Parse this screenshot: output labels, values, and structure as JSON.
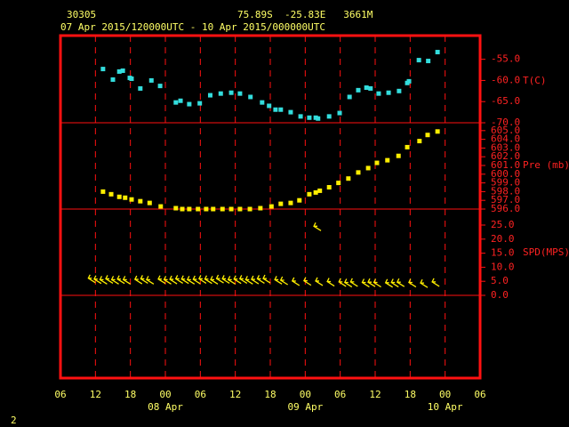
{
  "header": {
    "station": "30305",
    "location": "75.89S  -25.83E   3661M",
    "period": "07 Apr 2015/120000UTC - 10 Apr 2015/000000UTC",
    "page": "2"
  },
  "x_axis": {
    "xlim": [
      6,
      78
    ],
    "xticks": [
      {
        "value": 6,
        "label": "06"
      },
      {
        "value": 12,
        "label": "12"
      },
      {
        "value": 18,
        "label": "18"
      },
      {
        "value": 24,
        "label": "00"
      },
      {
        "value": 30,
        "label": "06"
      },
      {
        "value": 36,
        "label": "12"
      },
      {
        "value": 42,
        "label": "18"
      },
      {
        "value": 48,
        "label": "00"
      },
      {
        "value": 54,
        "label": "06"
      },
      {
        "value": 60,
        "label": "12"
      },
      {
        "value": 66,
        "label": "18"
      },
      {
        "value": 72,
        "label": "00"
      },
      {
        "value": 78,
        "label": "06"
      }
    ],
    "dates": [
      {
        "value": 24,
        "label": "08 Apr"
      },
      {
        "value": 48,
        "label": "09 Apr"
      },
      {
        "value": 72,
        "label": "10 Apr"
      }
    ]
  },
  "chart_data": [
    {
      "type": "scatter",
      "ylabel": "T(C)",
      "color": "#33dddd",
      "x": [
        13.3,
        15.0,
        16.1,
        16.7,
        17.9,
        18.2,
        19.7,
        21.6,
        23.1,
        25.8,
        26.6,
        28.1,
        29.9,
        31.7,
        33.5,
        35.3,
        36.8,
        38.6,
        40.6,
        41.8,
        42.9,
        43.8,
        45.5,
        47.2,
        48.7,
        49.8,
        50.2,
        52.1,
        53.9,
        55.6,
        57.1,
        58.5,
        59.2,
        60.6,
        62.3,
        64.1,
        65.5,
        65.8,
        67.5,
        69.1,
        70.7
      ],
      "values": [
        -57.3,
        -59.8,
        -57.9,
        -57.7,
        -59.4,
        -59.6,
        -61.9,
        -60.0,
        -61.3,
        -65.2,
        -64.8,
        -65.6,
        -65.4,
        -63.5,
        -63.1,
        -62.9,
        -63.1,
        -63.9,
        -65.2,
        -66.0,
        -66.9,
        -66.9,
        -67.5,
        -68.5,
        -68.8,
        -68.8,
        -69.0,
        -68.5,
        -67.7,
        -63.9,
        -62.3,
        -61.7,
        -61.9,
        -63.1,
        -62.9,
        -62.5,
        -60.6,
        -60.2,
        -55.2,
        -55.4,
        -53.3
      ],
      "ylim": [
        -70,
        -49.4
      ],
      "yticks": [
        {
          "value": -55,
          "label": "-55.0"
        },
        {
          "value": -60,
          "label": "-60.0"
        },
        {
          "value": -65,
          "label": "-65.0"
        },
        {
          "value": -70,
          "label": "-70.0"
        }
      ]
    },
    {
      "type": "scatter",
      "ylabel": "Pre (mb)",
      "color": "#ffee00",
      "x": [
        13.3,
        14.7,
        16.1,
        17.1,
        18.2,
        19.7,
        21.3,
        23.2,
        25.8,
        26.9,
        28.1,
        29.6,
        31.0,
        32.2,
        33.8,
        35.3,
        36.8,
        38.5,
        40.3,
        42.2,
        43.8,
        45.5,
        47.0,
        48.7,
        49.8,
        50.5,
        52.1,
        53.7,
        55.4,
        57.1,
        58.8,
        60.3,
        62.1,
        64.0,
        65.5,
        67.6,
        69.0,
        70.7
      ],
      "values": [
        598.0,
        597.7,
        597.4,
        597.3,
        597.1,
        596.9,
        596.7,
        596.3,
        596.1,
        596.0,
        596.0,
        596.0,
        596.0,
        596.0,
        596.0,
        596.0,
        596.0,
        596.0,
        596.1,
        596.3,
        596.6,
        596.7,
        597.0,
        597.7,
        597.9,
        598.1,
        598.5,
        599.0,
        599.5,
        600.2,
        600.7,
        601.3,
        601.6,
        602.1,
        603.1,
        603.8,
        604.5,
        604.9
      ],
      "ylim": [
        596,
        605.9
      ],
      "yticks": [
        {
          "value": 605,
          "label": "605.0"
        },
        {
          "value": 604,
          "label": "604.0"
        },
        {
          "value": 603,
          "label": "603.0"
        },
        {
          "value": 602,
          "label": "602.0"
        },
        {
          "value": 601,
          "label": "601.0"
        },
        {
          "value": 600,
          "label": "600.0"
        },
        {
          "value": 599,
          "label": "599.0"
        },
        {
          "value": 598,
          "label": "598.0"
        },
        {
          "value": 597,
          "label": "597.0"
        },
        {
          "value": 596,
          "label": "596.0"
        }
      ]
    },
    {
      "type": "barb",
      "ylabel": "SPD(MPS)",
      "color": "#ffee00",
      "x": [
        12,
        13,
        14,
        15,
        16,
        17,
        18,
        20,
        21,
        22,
        24,
        25,
        26,
        27,
        28,
        29,
        30,
        31,
        32,
        33,
        34,
        35,
        36,
        37,
        38,
        39,
        40,
        41,
        42,
        44,
        45,
        47,
        49,
        50.7,
        51,
        53,
        55,
        56,
        57,
        59,
        60,
        61,
        63,
        64,
        65,
        67,
        69,
        71
      ],
      "values": [
        4.5,
        4.2,
        4.0,
        4.3,
        4.0,
        4.2,
        4.0,
        4.1,
        4.3,
        4.0,
        4.2,
        4.0,
        4.1,
        4.3,
        4.2,
        4.0,
        4.1,
        4.3,
        4.2,
        4.0,
        4.4,
        4.3,
        4.0,
        4.2,
        4.3,
        4.0,
        4.1,
        4.3,
        4.4,
        4.0,
        3.8,
        3.5,
        3.6,
        23.0,
        3.5,
        3.3,
        3.2,
        3.0,
        3.2,
        3.0,
        3.1,
        3.0,
        2.9,
        3.0,
        3.1,
        3.0,
        2.8,
        3.2
      ],
      "ylim": [
        0,
        30.7
      ],
      "yticks": [
        {
          "value": 25,
          "label": "25.0"
        },
        {
          "value": 20,
          "label": "20.0"
        },
        {
          "value": 15,
          "label": "15.0"
        },
        {
          "value": 10,
          "label": "10.0"
        },
        {
          "value": 5,
          "label": "5.0"
        },
        {
          "value": 0,
          "label": "0.0"
        }
      ]
    }
  ]
}
